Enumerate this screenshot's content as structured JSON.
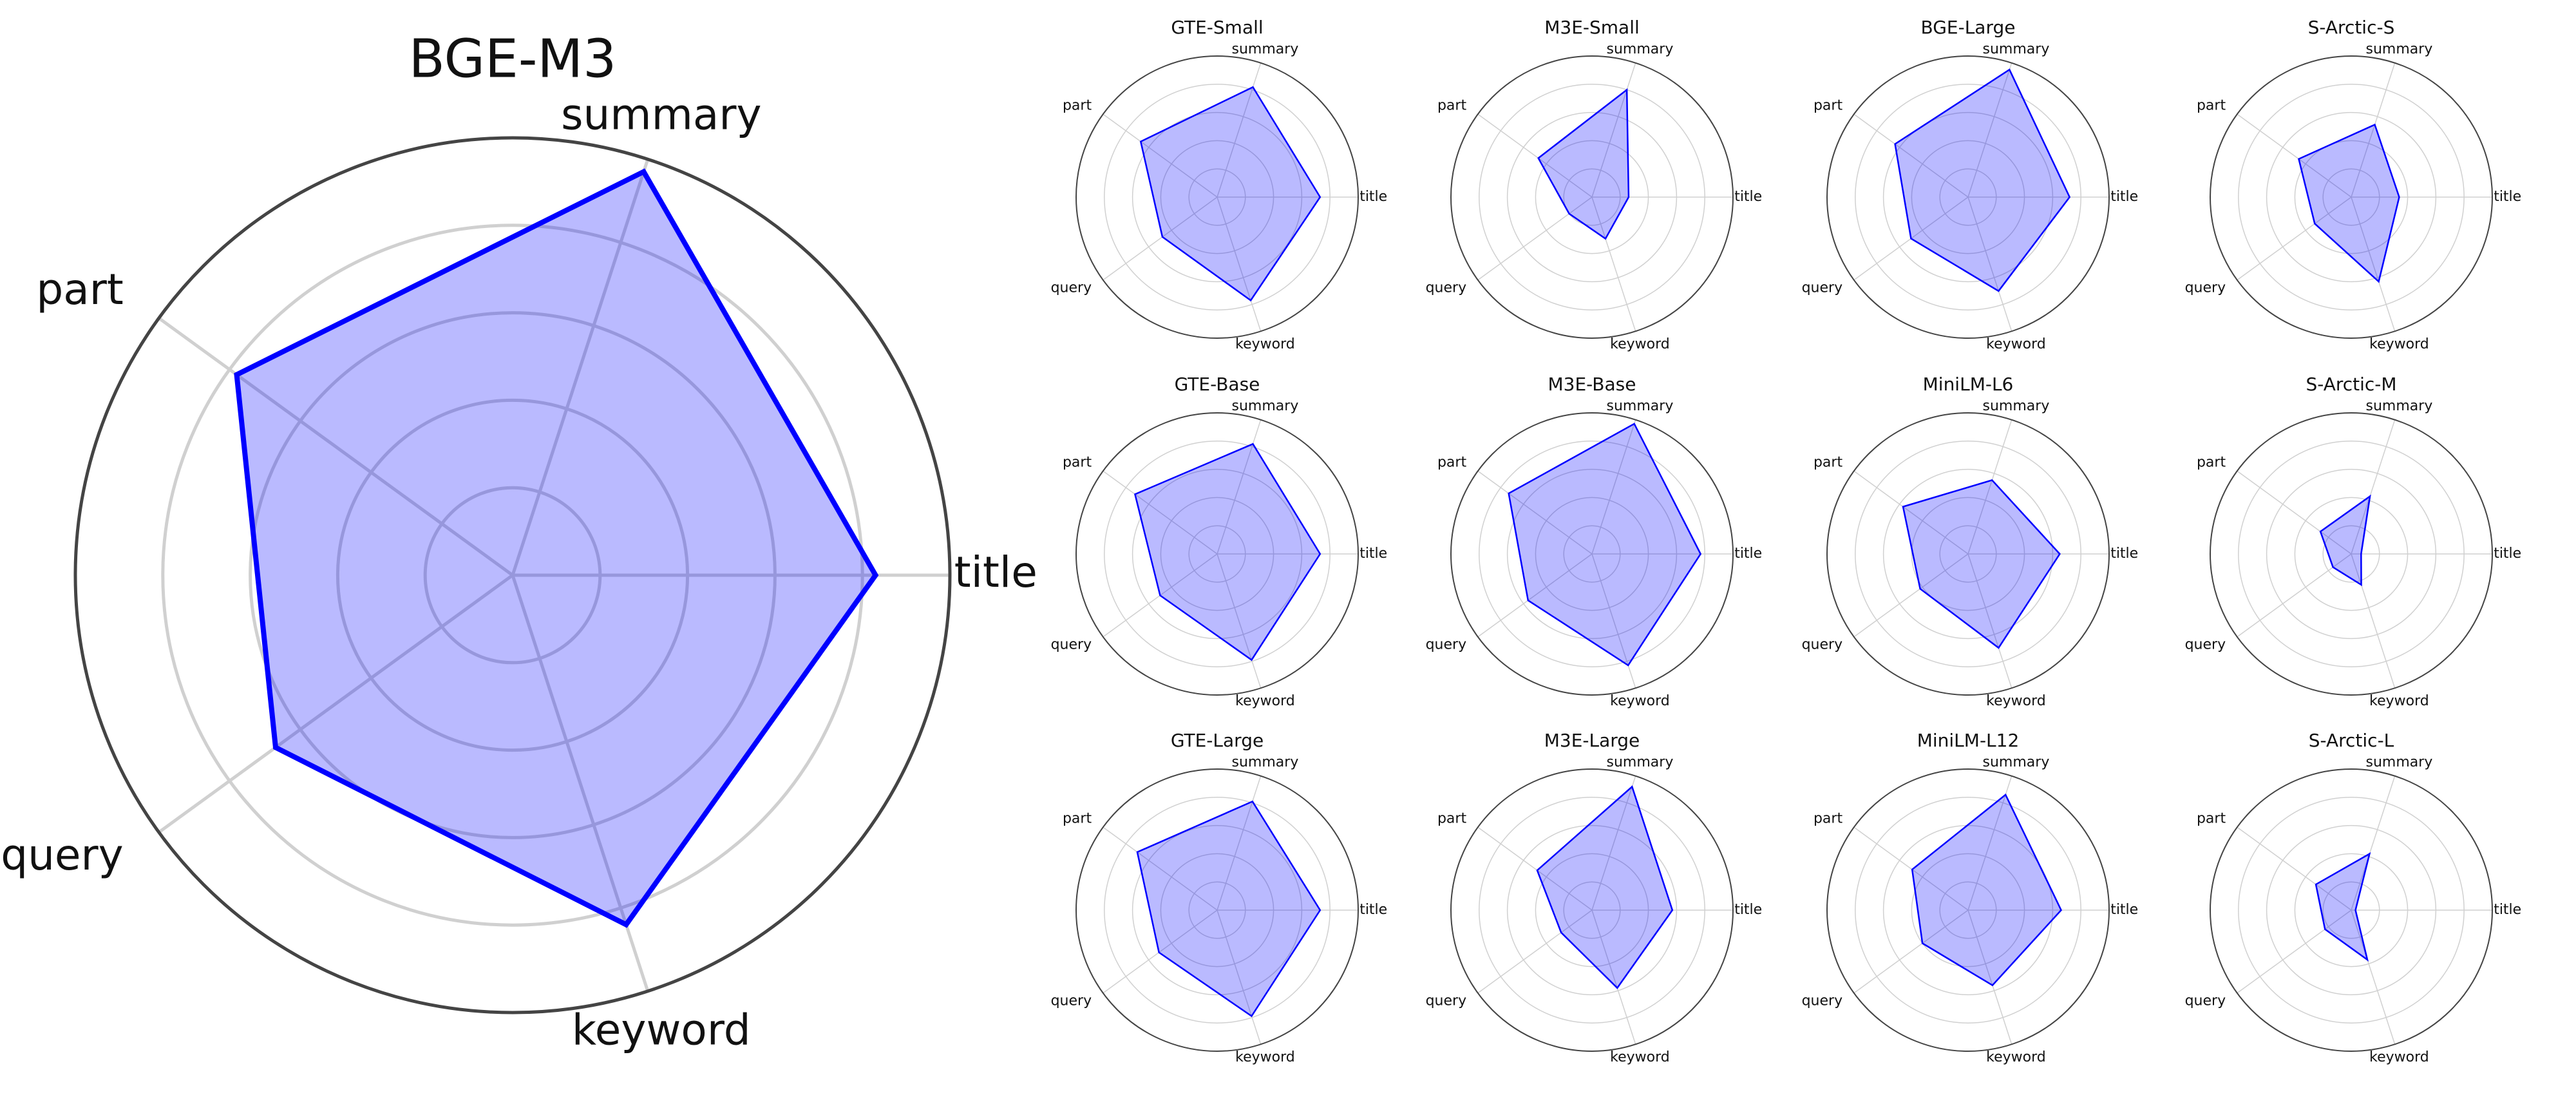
{
  "chart_data": [
    {
      "type": "radar",
      "title": "BGE-M3",
      "categories": [
        "title",
        "summary",
        "part",
        "query",
        "keyword"
      ],
      "values": [
        0.83,
        0.97,
        0.78,
        0.67,
        0.84
      ],
      "color": "#0000ff",
      "rlim": [
        0,
        1
      ],
      "rticks": [
        0.2,
        0.4,
        0.6,
        0.8
      ]
    },
    {
      "type": "radar",
      "title": "GTE-Small",
      "categories": [
        "title",
        "summary",
        "part",
        "query",
        "keyword"
      ],
      "values": [
        0.73,
        0.82,
        0.67,
        0.48,
        0.77
      ],
      "color": "#0000ff",
      "rlim": [
        0,
        1
      ],
      "rticks": [
        0.2,
        0.4,
        0.6,
        0.8
      ]
    },
    {
      "type": "radar",
      "title": "M3E-Small",
      "categories": [
        "title",
        "summary",
        "part",
        "query",
        "keyword"
      ],
      "values": [
        0.26,
        0.8,
        0.47,
        0.2,
        0.31
      ],
      "color": "#0000ff",
      "rlim": [
        0,
        1
      ],
      "rticks": [
        0.2,
        0.4,
        0.6,
        0.8
      ]
    },
    {
      "type": "radar",
      "title": "BGE-Large",
      "categories": [
        "title",
        "summary",
        "part",
        "query",
        "keyword"
      ],
      "values": [
        0.72,
        0.95,
        0.64,
        0.5,
        0.7
      ],
      "color": "#0000ff",
      "rlim": [
        0,
        1
      ],
      "rticks": [
        0.2,
        0.4,
        0.6,
        0.8
      ]
    },
    {
      "type": "radar",
      "title": "S-Arctic-S",
      "categories": [
        "title",
        "summary",
        "part",
        "query",
        "keyword"
      ],
      "values": [
        0.34,
        0.54,
        0.46,
        0.32,
        0.63
      ],
      "color": "#0000ff",
      "rlim": [
        0,
        1
      ],
      "rticks": [
        0.2,
        0.4,
        0.6,
        0.8
      ]
    },
    {
      "type": "radar",
      "title": "GTE-Base",
      "categories": [
        "title",
        "summary",
        "part",
        "query",
        "keyword"
      ],
      "values": [
        0.73,
        0.82,
        0.72,
        0.5,
        0.79
      ],
      "color": "#0000ff",
      "rlim": [
        0,
        1
      ],
      "rticks": [
        0.2,
        0.4,
        0.6,
        0.8
      ]
    },
    {
      "type": "radar",
      "title": "M3E-Base",
      "categories": [
        "title",
        "summary",
        "part",
        "query",
        "keyword"
      ],
      "values": [
        0.77,
        0.97,
        0.73,
        0.56,
        0.83
      ],
      "color": "#0000ff",
      "rlim": [
        0,
        1
      ],
      "rticks": [
        0.2,
        0.4,
        0.6,
        0.8
      ]
    },
    {
      "type": "radar",
      "title": "MiniLM-L6",
      "categories": [
        "title",
        "summary",
        "part",
        "query",
        "keyword"
      ],
      "values": [
        0.65,
        0.55,
        0.57,
        0.42,
        0.7
      ],
      "color": "#0000ff",
      "rlim": [
        0,
        1
      ],
      "rticks": [
        0.2,
        0.4,
        0.6,
        0.8
      ]
    },
    {
      "type": "radar",
      "title": "S-Arctic-M",
      "categories": [
        "title",
        "summary",
        "part",
        "query",
        "keyword"
      ],
      "values": [
        0.07,
        0.43,
        0.27,
        0.16,
        0.23
      ],
      "color": "#0000ff",
      "rlim": [
        0,
        1
      ],
      "rticks": [
        0.2,
        0.4,
        0.6,
        0.8
      ]
    },
    {
      "type": "radar",
      "title": "GTE-Large",
      "categories": [
        "title",
        "summary",
        "part",
        "query",
        "keyword"
      ],
      "values": [
        0.73,
        0.81,
        0.7,
        0.51,
        0.79
      ],
      "color": "#0000ff",
      "rlim": [
        0,
        1
      ],
      "rticks": [
        0.2,
        0.4,
        0.6,
        0.8
      ]
    },
    {
      "type": "radar",
      "title": "M3E-Large",
      "categories": [
        "title",
        "summary",
        "part",
        "query",
        "keyword"
      ],
      "values": [
        0.57,
        0.92,
        0.48,
        0.27,
        0.58
      ],
      "color": "#0000ff",
      "rlim": [
        0,
        1
      ],
      "rticks": [
        0.2,
        0.4,
        0.6,
        0.8
      ]
    },
    {
      "type": "radar",
      "title": "MiniLM-L12",
      "categories": [
        "title",
        "summary",
        "part",
        "query",
        "keyword"
      ],
      "values": [
        0.66,
        0.86,
        0.49,
        0.4,
        0.56
      ],
      "color": "#0000ff",
      "rlim": [
        0,
        1
      ],
      "rticks": [
        0.2,
        0.4,
        0.6,
        0.8
      ]
    },
    {
      "type": "radar",
      "title": "S-Arctic-L",
      "categories": [
        "title",
        "summary",
        "part",
        "query",
        "keyword"
      ],
      "values": [
        0.03,
        0.42,
        0.31,
        0.23,
        0.37
      ],
      "color": "#0000ff",
      "rlim": [
        0,
        1
      ],
      "rticks": [
        0.2,
        0.4,
        0.6,
        0.8
      ]
    }
  ]
}
